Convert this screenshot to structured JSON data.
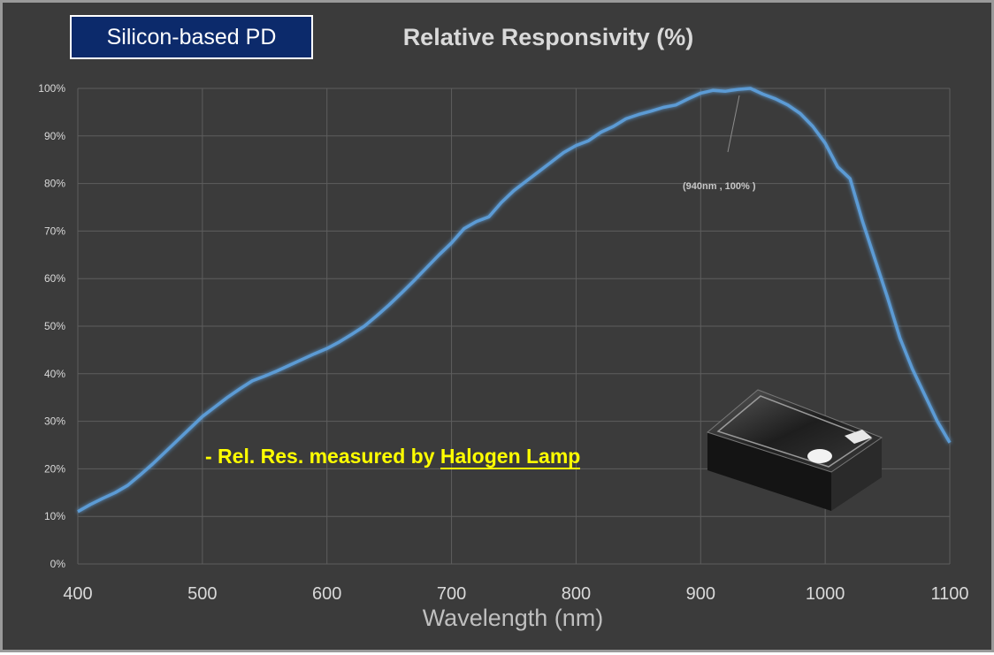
{
  "badge": "Silicon-based PD",
  "note": {
    "prefix": "- Rel. Res. measured by ",
    "highlight": "Halogen Lamp"
  },
  "peak_annotation": "(940nm , 100% )",
  "chart_data": {
    "type": "line",
    "title": "Relative Responsivity (%)",
    "xlabel": "Wavelength (nm)",
    "ylabel": "",
    "xlim": [
      400,
      1100
    ],
    "ylim": [
      0,
      100
    ],
    "xticks": [
      400,
      500,
      600,
      700,
      800,
      900,
      1000,
      1100
    ],
    "yticks": [
      0,
      10,
      20,
      30,
      40,
      50,
      60,
      70,
      80,
      90,
      100
    ],
    "ytick_format": "%",
    "grid": true,
    "legend": "none",
    "colors": {
      "background": "#3b3b3b",
      "grid": "#5e5e5e",
      "line": "#5b9bd5",
      "axis_text": "#d9d9d9",
      "note": "#ffff00"
    },
    "series": [
      {
        "x": [
          400,
          410,
          420,
          430,
          440,
          450,
          460,
          470,
          480,
          490,
          500,
          510,
          520,
          530,
          540,
          550,
          560,
          570,
          580,
          590,
          600,
          610,
          620,
          630,
          640,
          650,
          660,
          670,
          680,
          690,
          700,
          710,
          720,
          730,
          740,
          750,
          760,
          770,
          780,
          790,
          800,
          810,
          820,
          830,
          840,
          850,
          860,
          870,
          880,
          890,
          900,
          910,
          920,
          930,
          940,
          950,
          960,
          970,
          980,
          990,
          1000,
          1010,
          1020,
          1030,
          1040,
          1050,
          1060,
          1070,
          1080,
          1090,
          1100
        ],
        "values": [
          11,
          12.5,
          13.8,
          15,
          16.5,
          18.7,
          21,
          23.5,
          26,
          28.5,
          31,
          33,
          35,
          36.8,
          38.5,
          39.5,
          40.6,
          41.8,
          43,
          44.2,
          45.3,
          46.7,
          48.3,
          50,
          52.2,
          54.5,
          57,
          59.6,
          62.3,
          65,
          67.5,
          70.5,
          72,
          73,
          76,
          78.5,
          80.5,
          82.5,
          84.5,
          86.5,
          88,
          89,
          90.8,
          92,
          93.6,
          94.5,
          95.2,
          96,
          96.5,
          97.8,
          99,
          99.6,
          99.4,
          99.8,
          100,
          98.8,
          97.8,
          96.5,
          94.7,
          92,
          88.5,
          83.5,
          81,
          72,
          64,
          56,
          47.5,
          41,
          35.5,
          30,
          25.5
        ]
      }
    ],
    "annotations": [
      {
        "x": 940,
        "y": 100,
        "text": "(940nm , 100% )"
      }
    ]
  }
}
